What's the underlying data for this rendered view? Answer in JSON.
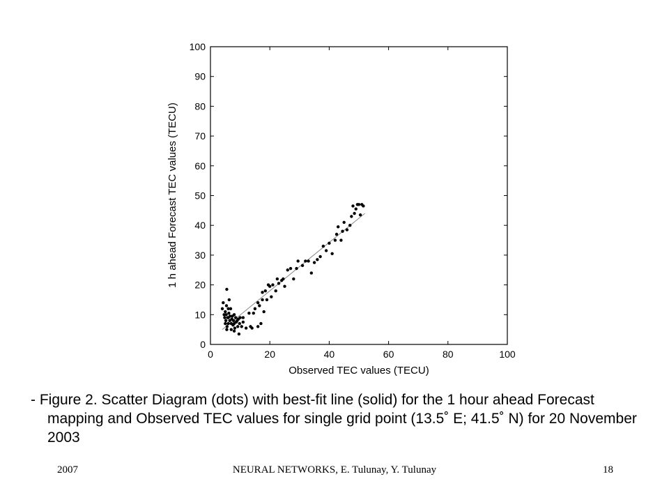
{
  "chart_data": {
    "type": "scatter",
    "title": "",
    "xlabel": "Observed TEC values (TECU)",
    "ylabel": "1 h ahead Forecast TEC values (TECU)",
    "xlim": [
      0,
      100
    ],
    "ylim": [
      0,
      100
    ],
    "xticks": [
      0,
      20,
      40,
      60,
      80,
      100
    ],
    "yticks": [
      0,
      10,
      20,
      30,
      40,
      50,
      60,
      70,
      80,
      90,
      100
    ],
    "grid": false,
    "legend": "none",
    "series": [
      {
        "marker": "dot",
        "color": "#000000",
        "points": [
          [
            4,
            12
          ],
          [
            4.3,
            14
          ],
          [
            4.6,
            10
          ],
          [
            4.8,
            9
          ],
          [
            5,
            11
          ],
          [
            5,
            7
          ],
          [
            5.2,
            8
          ],
          [
            5.3,
            10
          ],
          [
            5.4,
            13
          ],
          [
            5.5,
            18.5
          ],
          [
            5.6,
            6
          ],
          [
            5.8,
            9
          ],
          [
            6,
            12
          ],
          [
            6,
            7
          ],
          [
            6.2,
            10.5
          ],
          [
            6.3,
            15
          ],
          [
            6.5,
            8
          ],
          [
            6.6,
            9.5
          ],
          [
            6.8,
            12
          ],
          [
            7,
            7
          ],
          [
            7,
            5
          ],
          [
            7.2,
            8.5
          ],
          [
            7.4,
            9.5
          ],
          [
            7.6,
            6.5
          ],
          [
            7.8,
            8
          ],
          [
            8,
            7
          ],
          [
            8,
            10
          ],
          [
            8.2,
            5.5
          ],
          [
            8.5,
            9
          ],
          [
            8.7,
            7.5
          ],
          [
            9,
            8
          ],
          [
            9.2,
            6
          ],
          [
            9.4,
            8.5
          ],
          [
            9.6,
            3.5
          ],
          [
            9.8,
            7
          ],
          [
            10,
            9
          ],
          [
            10.5,
            6
          ],
          [
            11,
            7.5
          ],
          [
            12,
            5.5
          ],
          [
            13,
            10.5
          ],
          [
            14,
            5.5
          ],
          [
            14.5,
            10.5
          ],
          [
            15,
            12
          ],
          [
            16,
            6
          ],
          [
            16,
            14
          ],
          [
            16.5,
            13
          ],
          [
            17,
            7
          ],
          [
            17.5,
            15
          ],
          [
            17.5,
            17.5
          ],
          [
            18,
            11
          ],
          [
            18.5,
            18
          ],
          [
            19,
            15
          ],
          [
            19.5,
            20
          ],
          [
            20,
            19.5
          ],
          [
            20.5,
            16
          ],
          [
            21,
            20
          ],
          [
            22,
            18
          ],
          [
            22.5,
            22
          ],
          [
            23,
            20.5
          ],
          [
            24,
            21.5
          ],
          [
            24.5,
            22
          ],
          [
            25,
            19.5
          ],
          [
            26,
            25
          ],
          [
            27,
            25.5
          ],
          [
            28,
            22
          ],
          [
            29,
            25.5
          ],
          [
            29.5,
            28
          ],
          [
            31,
            26.5
          ],
          [
            32,
            28
          ],
          [
            33,
            28
          ],
          [
            34,
            24
          ],
          [
            35,
            27.5
          ],
          [
            36,
            28.5
          ],
          [
            37,
            29.5
          ],
          [
            38,
            33
          ],
          [
            39,
            31.5
          ],
          [
            40,
            34
          ],
          [
            41,
            30.5
          ],
          [
            42,
            35
          ],
          [
            42.5,
            37
          ],
          [
            43,
            39.5
          ],
          [
            44,
            35
          ],
          [
            44.5,
            38
          ],
          [
            45,
            41
          ],
          [
            46,
            38.5
          ],
          [
            47,
            40
          ],
          [
            47.5,
            43
          ],
          [
            48,
            46.5
          ],
          [
            48.5,
            44
          ],
          [
            49,
            45.5
          ],
          [
            49.5,
            47
          ],
          [
            50,
            47
          ],
          [
            50.5,
            43.5
          ],
          [
            51,
            47
          ],
          [
            51.5,
            46.5
          ],
          [
            13.5,
            6
          ],
          [
            11,
            9
          ],
          [
            8,
            4.5
          ],
          [
            6,
            9
          ],
          [
            5.5,
            5
          ]
        ]
      }
    ],
    "fit_line": {
      "style": "solid",
      "color": "#888888",
      "x": [
        4,
        52
      ],
      "y": [
        5,
        44
      ]
    }
  },
  "caption": "- Figure 2. Scatter Diagram (dots) with best-fit line (solid) for the 1 hour ahead Forecast mapping and Observed TEC values for single grid point (13.5˚ E; 41.5˚ N) for 20 November 2003",
  "footer": {
    "year": "2007",
    "title": "NEURAL NETWORKS, E. Tulunay, Y. Tulunay",
    "page": "18"
  }
}
